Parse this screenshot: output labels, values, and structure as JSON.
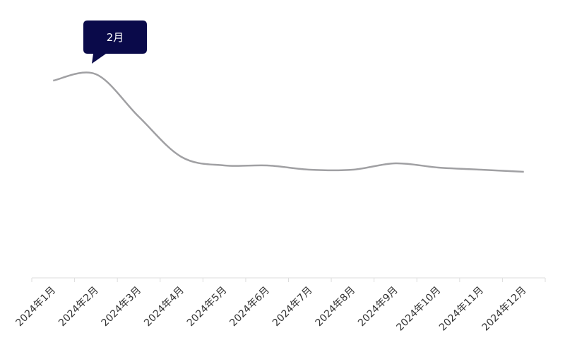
{
  "chart_data": {
    "type": "line",
    "categories": [
      "2024年1月",
      "2024年2月",
      "2024年3月",
      "2024年4月",
      "2024年5月",
      "2024年6月",
      "2024年7月",
      "2024年8月",
      "2024年9月",
      "2024年10月",
      "2024年11月",
      "2024年12月"
    ],
    "series": [
      {
        "color": "#a0a0a3",
        "values": [
          93,
          96,
          76,
          57,
          53,
          53,
          51,
          51,
          54,
          52,
          51,
          50
        ]
      }
    ],
    "ylim": [
      0,
      100
    ],
    "tooltip": {
      "label": "2月",
      "color": "#0a0a4a"
    }
  }
}
